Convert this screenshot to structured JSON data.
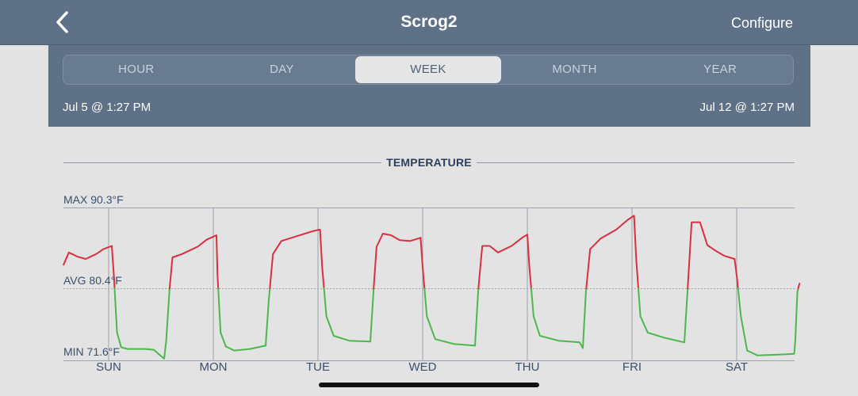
{
  "nav": {
    "title": "Scrog2",
    "configure_label": "Configure",
    "back_icon": "chevron-left-icon"
  },
  "tabs": [
    {
      "label": "HOUR",
      "active": false
    },
    {
      "label": "DAY",
      "active": false
    },
    {
      "label": "WEEK",
      "active": true
    },
    {
      "label": "MONTH",
      "active": false
    },
    {
      "label": "YEAR",
      "active": false
    }
  ],
  "range": {
    "start": "Jul 5 @ 1:27 PM",
    "end": "Jul 12 @ 1:27 PM"
  },
  "section": {
    "title": "TEMPERATURE"
  },
  "stats": {
    "max": "MAX 90.3°F",
    "avg": "AVG 80.4°F",
    "min": "MIN 71.6°F"
  },
  "colors": {
    "above_avg": "#d93040",
    "below_avg": "#4cb84c",
    "nav": "#5e7187"
  },
  "chart_data": {
    "type": "line",
    "x_unit": "day",
    "categories": [
      "SUN",
      "MON",
      "TUE",
      "WED",
      "THU",
      "FRI",
      "SAT"
    ],
    "ylim": [
      71.6,
      90.3
    ],
    "avg": 80.4,
    "series": [
      {
        "points": [
          [
            -0.43,
            83.3
          ],
          [
            -0.38,
            84.8
          ],
          [
            -0.3,
            84.3
          ],
          [
            -0.22,
            84.0
          ],
          [
            -0.12,
            84.6
          ],
          [
            -0.05,
            85.2
          ],
          [
            0.03,
            85.6
          ],
          [
            0.05,
            82.0
          ],
          [
            0.08,
            75.0
          ],
          [
            0.12,
            73.2
          ],
          [
            0.18,
            73.0
          ],
          [
            0.35,
            73.0
          ],
          [
            0.43,
            72.9
          ],
          [
            0.53,
            71.8
          ],
          [
            0.55,
            74.0
          ],
          [
            0.58,
            80.0
          ],
          [
            0.61,
            84.2
          ],
          [
            0.7,
            84.6
          ],
          [
            0.85,
            85.5
          ],
          [
            0.94,
            86.4
          ],
          [
            1.03,
            86.9
          ],
          [
            1.04,
            82.0
          ],
          [
            1.07,
            75.0
          ],
          [
            1.12,
            73.3
          ],
          [
            1.2,
            72.8
          ],
          [
            1.35,
            73.0
          ],
          [
            1.5,
            73.4
          ],
          [
            1.53,
            79.0
          ],
          [
            1.57,
            84.6
          ],
          [
            1.65,
            86.2
          ],
          [
            1.8,
            86.8
          ],
          [
            1.95,
            87.4
          ],
          [
            2.02,
            87.6
          ],
          [
            2.04,
            83.0
          ],
          [
            2.08,
            77.0
          ],
          [
            2.15,
            74.6
          ],
          [
            2.3,
            74.0
          ],
          [
            2.5,
            73.9
          ],
          [
            2.53,
            80.0
          ],
          [
            2.56,
            85.5
          ],
          [
            2.62,
            87.1
          ],
          [
            2.7,
            86.9
          ],
          [
            2.78,
            86.3
          ],
          [
            2.88,
            86.2
          ],
          [
            2.98,
            86.6
          ],
          [
            3.0,
            83.0
          ],
          [
            3.04,
            77.0
          ],
          [
            3.12,
            74.2
          ],
          [
            3.3,
            73.6
          ],
          [
            3.5,
            73.4
          ],
          [
            3.53,
            80.0
          ],
          [
            3.57,
            85.6
          ],
          [
            3.64,
            85.6
          ],
          [
            3.72,
            84.8
          ],
          [
            3.85,
            85.6
          ],
          [
            3.95,
            86.6
          ],
          [
            4.0,
            87.0
          ],
          [
            4.02,
            83.0
          ],
          [
            4.06,
            77.0
          ],
          [
            4.12,
            74.6
          ],
          [
            4.3,
            74.0
          ],
          [
            4.5,
            73.8
          ],
          [
            4.53,
            73.1
          ],
          [
            4.56,
            80.0
          ],
          [
            4.6,
            85.2
          ],
          [
            4.7,
            86.5
          ],
          [
            4.85,
            87.6
          ],
          [
            4.96,
            88.8
          ],
          [
            5.02,
            89.3
          ],
          [
            5.04,
            84.0
          ],
          [
            5.08,
            77.0
          ],
          [
            5.15,
            75.0
          ],
          [
            5.3,
            74.4
          ],
          [
            5.5,
            73.8
          ],
          [
            5.53,
            80.0
          ],
          [
            5.57,
            88.5
          ],
          [
            5.65,
            88.5
          ],
          [
            5.72,
            85.7
          ],
          [
            5.8,
            85.0
          ],
          [
            5.88,
            84.4
          ],
          [
            5.98,
            84.0
          ],
          [
            6.0,
            82.0
          ],
          [
            6.04,
            77.0
          ],
          [
            6.1,
            72.8
          ],
          [
            6.2,
            72.2
          ],
          [
            6.4,
            72.3
          ],
          [
            6.55,
            72.4
          ],
          [
            6.56,
            74.0
          ],
          [
            6.58,
            80.0
          ],
          [
            6.6,
            81.0
          ]
        ]
      }
    ]
  }
}
